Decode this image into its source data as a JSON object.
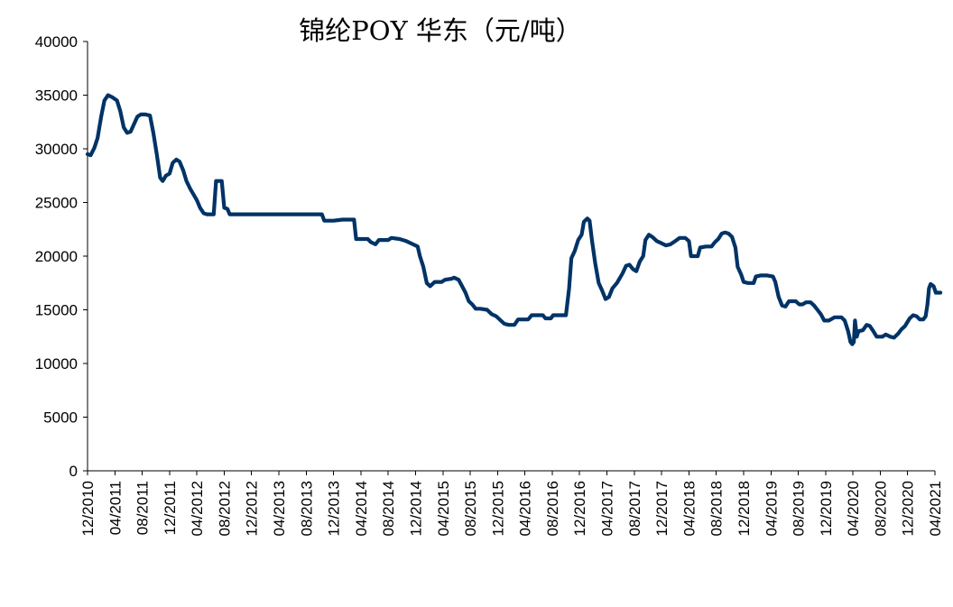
{
  "chart_data": {
    "type": "line",
    "title": "锦纶POY 华东（元/吨）",
    "xlabel": "",
    "ylabel": "",
    "ylim": [
      0,
      40000
    ],
    "yticks": [
      0,
      5000,
      10000,
      15000,
      20000,
      25000,
      30000,
      35000,
      40000
    ],
    "xlim": [
      "12/2010",
      "04/2021"
    ],
    "xticks": [
      "12/2010",
      "04/2011",
      "08/2011",
      "12/2011",
      "04/2012",
      "08/2012",
      "12/2012",
      "04/2013",
      "08/2013",
      "12/2013",
      "04/2014",
      "08/2014",
      "12/2014",
      "04/2015",
      "08/2015",
      "12/2015",
      "04/2016",
      "08/2016",
      "12/2016",
      "04/2017",
      "08/2017",
      "12/2017",
      "04/2018",
      "08/2018",
      "12/2018",
      "04/2019",
      "08/2019",
      "12/2019",
      "04/2020",
      "08/2020",
      "12/2020",
      "04/2021"
    ],
    "grid": false,
    "legend": "none",
    "series_color": "#003366",
    "series": [
      {
        "points": [
          [
            "2010-12-01",
            29500
          ],
          [
            "2010-12-15",
            29400
          ],
          [
            "2011-01-01",
            30100
          ],
          [
            "2011-01-15",
            31000
          ],
          [
            "2011-02-01",
            33000
          ],
          [
            "2011-02-15",
            34500
          ],
          [
            "2011-03-01",
            35000
          ],
          [
            "2011-03-20",
            34800
          ],
          [
            "2011-04-10",
            34500
          ],
          [
            "2011-04-25",
            33500
          ],
          [
            "2011-05-10",
            32000
          ],
          [
            "2011-05-25",
            31500
          ],
          [
            "2011-06-10",
            31600
          ],
          [
            "2011-06-25",
            32300
          ],
          [
            "2011-07-10",
            33000
          ],
          [
            "2011-07-25",
            33200
          ],
          [
            "2011-08-15",
            33200
          ],
          [
            "2011-09-05",
            33100
          ],
          [
            "2011-09-20",
            31500
          ],
          [
            "2011-10-05",
            29500
          ],
          [
            "2011-10-20",
            27300
          ],
          [
            "2011-11-01",
            27000
          ],
          [
            "2011-11-15",
            27500
          ],
          [
            "2011-12-01",
            27700
          ],
          [
            "2011-12-15",
            28700
          ],
          [
            "2012-01-01",
            29000
          ],
          [
            "2012-01-15",
            28800
          ],
          [
            "2012-02-01",
            28000
          ],
          [
            "2012-02-15",
            27000
          ],
          [
            "2012-03-01",
            26300
          ],
          [
            "2012-03-15",
            25800
          ],
          [
            "2012-04-01",
            25200
          ],
          [
            "2012-04-15",
            24500
          ],
          [
            "2012-05-01",
            24000
          ],
          [
            "2012-05-15",
            23900
          ],
          [
            "2012-06-15",
            23900
          ],
          [
            "2012-06-25",
            27000
          ],
          [
            "2012-07-20",
            27000
          ],
          [
            "2012-08-01",
            24500
          ],
          [
            "2012-08-15",
            24400
          ],
          [
            "2012-08-25",
            23900
          ],
          [
            "2013-01-01",
            23900
          ],
          [
            "2013-06-01",
            23900
          ],
          [
            "2013-10-10",
            23900
          ],
          [
            "2013-10-20",
            23300
          ],
          [
            "2013-12-01",
            23300
          ],
          [
            "2014-01-10",
            23400
          ],
          [
            "2014-03-01",
            23400
          ],
          [
            "2014-03-10",
            21600
          ],
          [
            "2014-05-01",
            21600
          ],
          [
            "2014-05-15",
            21300
          ],
          [
            "2014-06-05",
            21100
          ],
          [
            "2014-06-20",
            21500
          ],
          [
            "2014-08-01",
            21500
          ],
          [
            "2014-08-15",
            21700
          ],
          [
            "2014-09-20",
            21600
          ],
          [
            "2014-10-20",
            21400
          ],
          [
            "2014-11-20",
            21100
          ],
          [
            "2014-12-10",
            20900
          ],
          [
            "2014-12-20",
            20000
          ],
          [
            "2015-01-05",
            19000
          ],
          [
            "2015-01-20",
            17500
          ],
          [
            "2015-02-05",
            17200
          ],
          [
            "2015-02-25",
            17600
          ],
          [
            "2015-03-25",
            17600
          ],
          [
            "2015-04-10",
            17800
          ],
          [
            "2015-05-10",
            17900
          ],
          [
            "2015-05-20",
            18000
          ],
          [
            "2015-06-10",
            17800
          ],
          [
            "2015-06-25",
            17200
          ],
          [
            "2015-07-10",
            16600
          ],
          [
            "2015-07-25",
            15800
          ],
          [
            "2015-08-10",
            15500
          ],
          [
            "2015-08-25",
            15100
          ],
          [
            "2015-09-15",
            15100
          ],
          [
            "2015-10-15",
            15000
          ],
          [
            "2015-11-05",
            14600
          ],
          [
            "2015-11-25",
            14400
          ],
          [
            "2015-12-15",
            14000
          ],
          [
            "2016-01-01",
            13700
          ],
          [
            "2016-01-20",
            13600
          ],
          [
            "2016-02-15",
            13600
          ],
          [
            "2016-03-01",
            14100
          ],
          [
            "2016-03-20",
            14100
          ],
          [
            "2016-04-15",
            14100
          ],
          [
            "2016-05-01",
            14500
          ],
          [
            "2016-06-01",
            14500
          ],
          [
            "2016-06-20",
            14500
          ],
          [
            "2016-07-01",
            14200
          ],
          [
            "2016-07-25",
            14200
          ],
          [
            "2016-08-05",
            14500
          ],
          [
            "2016-09-15",
            14500
          ],
          [
            "2016-10-01",
            14500
          ],
          [
            "2016-10-15",
            17000
          ],
          [
            "2016-10-25",
            19800
          ],
          [
            "2016-11-10",
            20500
          ],
          [
            "2016-11-25",
            21500
          ],
          [
            "2016-12-10",
            22000
          ],
          [
            "2016-12-20",
            23200
          ],
          [
            "2017-01-05",
            23500
          ],
          [
            "2017-01-15",
            23300
          ],
          [
            "2017-01-25",
            21500
          ],
          [
            "2017-02-10",
            19300
          ],
          [
            "2017-02-25",
            17500
          ],
          [
            "2017-03-10",
            16800
          ],
          [
            "2017-03-25",
            16000
          ],
          [
            "2017-04-10",
            16200
          ],
          [
            "2017-04-25",
            17000
          ],
          [
            "2017-05-15",
            17500
          ],
          [
            "2017-06-10",
            18400
          ],
          [
            "2017-06-25",
            19100
          ],
          [
            "2017-07-10",
            19200
          ],
          [
            "2017-07-25",
            18800
          ],
          [
            "2017-08-10",
            18600
          ],
          [
            "2017-08-25",
            19500
          ],
          [
            "2017-09-10",
            20000
          ],
          [
            "2017-09-20",
            21500
          ],
          [
            "2017-10-05",
            22000
          ],
          [
            "2017-10-20",
            21800
          ],
          [
            "2017-11-10",
            21400
          ],
          [
            "2017-12-01",
            21200
          ],
          [
            "2017-12-20",
            21000
          ],
          [
            "2018-01-10",
            21100
          ],
          [
            "2018-02-01",
            21400
          ],
          [
            "2018-02-20",
            21700
          ],
          [
            "2018-03-15",
            21700
          ],
          [
            "2018-04-01",
            21400
          ],
          [
            "2018-04-10",
            20000
          ],
          [
            "2018-05-10",
            20000
          ],
          [
            "2018-05-20",
            20800
          ],
          [
            "2018-06-15",
            20900
          ],
          [
            "2018-07-10",
            20900
          ],
          [
            "2018-07-25",
            21300
          ],
          [
            "2018-08-10",
            21600
          ],
          [
            "2018-08-25",
            22100
          ],
          [
            "2018-09-10",
            22200
          ],
          [
            "2018-09-25",
            22100
          ],
          [
            "2018-10-10",
            21800
          ],
          [
            "2018-10-25",
            20800
          ],
          [
            "2018-11-05",
            19000
          ],
          [
            "2018-11-20",
            18300
          ],
          [
            "2018-12-01",
            17600
          ],
          [
            "2018-12-20",
            17500
          ],
          [
            "2019-01-15",
            17500
          ],
          [
            "2019-01-25",
            18100
          ],
          [
            "2019-02-15",
            18200
          ],
          [
            "2019-03-15",
            18200
          ],
          [
            "2019-04-10",
            18100
          ],
          [
            "2019-04-20",
            17600
          ],
          [
            "2019-05-05",
            16200
          ],
          [
            "2019-05-20",
            15400
          ],
          [
            "2019-06-05",
            15300
          ],
          [
            "2019-06-20",
            15800
          ],
          [
            "2019-07-20",
            15800
          ],
          [
            "2019-08-05",
            15500
          ],
          [
            "2019-08-20",
            15500
          ],
          [
            "2019-09-05",
            15700
          ],
          [
            "2019-09-25",
            15700
          ],
          [
            "2019-10-10",
            15400
          ],
          [
            "2019-10-25",
            15000
          ],
          [
            "2019-11-10",
            14600
          ],
          [
            "2019-11-25",
            14000
          ],
          [
            "2019-12-15",
            14000
          ],
          [
            "2020-01-10",
            14300
          ],
          [
            "2020-02-10",
            14300
          ],
          [
            "2020-02-25",
            14000
          ],
          [
            "2020-03-10",
            13000
          ],
          [
            "2020-03-20",
            12000
          ],
          [
            "2020-03-28",
            11800
          ],
          [
            "2020-04-05",
            12000
          ],
          [
            "2020-04-10",
            14000
          ],
          [
            "2020-04-18",
            12500
          ],
          [
            "2020-04-25",
            13000
          ],
          [
            "2020-05-15",
            13100
          ],
          [
            "2020-06-01",
            13600
          ],
          [
            "2020-06-15",
            13500
          ],
          [
            "2020-07-01",
            13000
          ],
          [
            "2020-07-15",
            12500
          ],
          [
            "2020-08-10",
            12500
          ],
          [
            "2020-08-25",
            12700
          ],
          [
            "2020-09-15",
            12500
          ],
          [
            "2020-10-01",
            12400
          ],
          [
            "2020-10-20",
            12800
          ],
          [
            "2020-11-05",
            13200
          ],
          [
            "2020-11-20",
            13500
          ],
          [
            "2020-12-10",
            14200
          ],
          [
            "2020-12-25",
            14500
          ],
          [
            "2021-01-10",
            14400
          ],
          [
            "2021-01-25",
            14100
          ],
          [
            "2021-02-10",
            14100
          ],
          [
            "2021-02-20",
            14400
          ],
          [
            "2021-02-28",
            15500
          ],
          [
            "2021-03-05",
            17000
          ],
          [
            "2021-03-12",
            17400
          ],
          [
            "2021-03-25",
            17200
          ],
          [
            "2021-04-05",
            16600
          ],
          [
            "2021-04-25",
            16600
          ]
        ]
      }
    ]
  }
}
